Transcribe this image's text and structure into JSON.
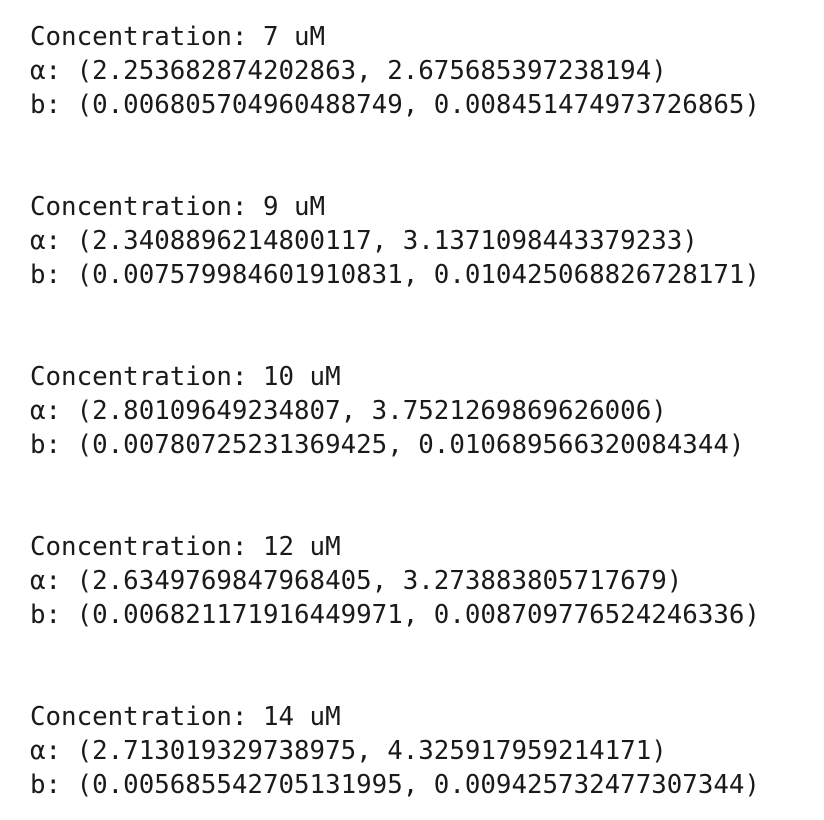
{
  "blocks": [
    {
      "lines": [
        "Concentration: 7 uM",
        "α: (2.253682874202863, 2.675685397238194)",
        "b: (0.006805704960488749, 0.008451474973726865)"
      ]
    },
    {
      "lines": [
        "Concentration: 9 uM",
        "α: (2.3408896214800117, 3.1371098443379233)",
        "b: (0.007579984601910831, 0.010425068826728171)"
      ]
    },
    {
      "lines": [
        "Concentration: 10 uM",
        "α: (2.80109649234807, 3.7521269869626006)",
        "b: (0.00780725231369425, 0.010689566320084344)"
      ]
    },
    {
      "lines": [
        "Concentration: 12 uM",
        "α: (2.6349769847968405, 3.273883805717679)",
        "b: (0.006821171916449971, 0.008709776524246336)"
      ]
    },
    {
      "lines": [
        "Concentration: 14 uM",
        "α: (2.713019329738975, 4.325917959214171)",
        "b: (0.005685542705131995, 0.009425732477307344)"
      ]
    }
  ]
}
